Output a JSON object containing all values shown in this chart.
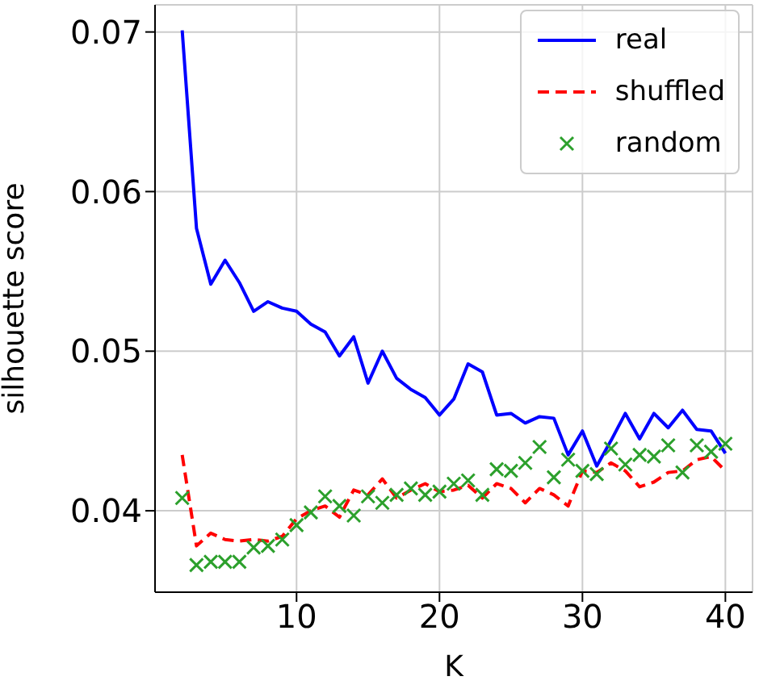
{
  "chart_data": {
    "type": "line",
    "xlabel": "K",
    "ylabel": "silhouette score",
    "x": [
      2,
      3,
      4,
      5,
      6,
      7,
      8,
      9,
      10,
      11,
      12,
      13,
      14,
      15,
      16,
      17,
      18,
      19,
      20,
      21,
      22,
      23,
      24,
      25,
      26,
      27,
      28,
      29,
      30,
      31,
      32,
      33,
      34,
      35,
      36,
      37,
      38,
      39,
      40
    ],
    "series": [
      {
        "name": "real",
        "color": "#0000ff",
        "line_style": "solid",
        "marker": "none",
        "values": [
          0.0701,
          0.0577,
          0.0542,
          0.0557,
          0.0543,
          0.0525,
          0.0531,
          0.0527,
          0.0525,
          0.0517,
          0.0512,
          0.0497,
          0.0509,
          0.048,
          0.05,
          0.0483,
          0.0476,
          0.0471,
          0.046,
          0.047,
          0.0492,
          0.0487,
          0.046,
          0.0461,
          0.0455,
          0.0459,
          0.0458,
          0.0435,
          0.045,
          0.0428,
          0.0444,
          0.0461,
          0.0445,
          0.0461,
          0.0452,
          0.0463,
          0.0451,
          0.045,
          0.0436
        ]
      },
      {
        "name": "shuffled",
        "color": "#ff0000",
        "line_style": "dashed",
        "marker": "none",
        "values": [
          0.0435,
          0.0378,
          0.0386,
          0.0382,
          0.0381,
          0.0382,
          0.0381,
          0.0384,
          0.0395,
          0.04,
          0.0403,
          0.0396,
          0.0413,
          0.041,
          0.042,
          0.0408,
          0.0413,
          0.0417,
          0.0412,
          0.0413,
          0.0416,
          0.0408,
          0.0417,
          0.0414,
          0.0405,
          0.0414,
          0.041,
          0.0403,
          0.0425,
          0.0424,
          0.043,
          0.0425,
          0.0415,
          0.0418,
          0.0424,
          0.0425,
          0.0432,
          0.0434,
          0.0425
        ]
      },
      {
        "name": "random",
        "color": "#2ca02c",
        "type": "scatter",
        "marker": "cross",
        "values": [
          0.0408,
          0.0366,
          0.0368,
          0.0368,
          0.0368,
          0.0377,
          0.0378,
          0.0382,
          0.0391,
          0.0399,
          0.0409,
          0.0403,
          0.0397,
          0.0409,
          0.0405,
          0.041,
          0.0414,
          0.041,
          0.0412,
          0.0417,
          0.0419,
          0.041,
          0.0426,
          0.0425,
          0.043,
          0.044,
          0.0421,
          0.0432,
          0.0425,
          0.0423,
          0.0439,
          0.0429,
          0.0435,
          0.0434,
          0.0441,
          0.0424,
          0.0441,
          0.0437,
          0.0442
        ]
      }
    ],
    "xlim": [
      0.1,
      41.9
    ],
    "xticks": [
      10,
      20,
      30,
      40
    ],
    "ylim": [
      0.0349,
      0.0717
    ],
    "yticks": [
      0.04,
      0.05,
      0.06,
      0.07
    ],
    "grid": true,
    "legend": "top right"
  }
}
